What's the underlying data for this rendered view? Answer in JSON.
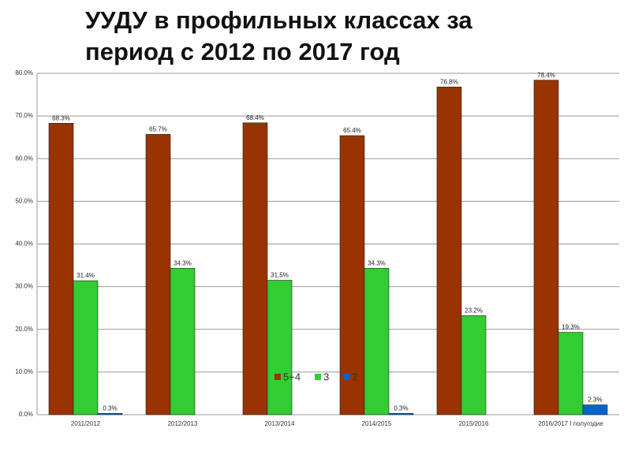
{
  "chart_data": {
    "type": "bar",
    "title": "УУДУ в профильных классах за период с 2012 по 2017 год",
    "categories": [
      "2011/2012",
      "2012/2013",
      "2013/2014",
      "2014/2015",
      "2015/2016",
      "2016/2017 I полугодие"
    ],
    "series": [
      {
        "name": "5+4",
        "color": "#993300",
        "values": [
          68.3,
          65.7,
          68.4,
          65.4,
          76.8,
          78.4
        ],
        "value_labels": [
          "68.3%",
          "65.7%",
          "68.4%",
          "65.4%",
          "76.8%",
          "78.4%"
        ]
      },
      {
        "name": "3",
        "color": "#33cc33",
        "values": [
          31.4,
          34.3,
          31.5,
          34.3,
          23.2,
          19.3
        ],
        "value_labels": [
          "31.4%",
          "34.3%",
          "31.5%",
          "34.3%",
          "23.2%",
          "19.3%"
        ]
      },
      {
        "name": "2",
        "color": "#0066cc",
        "values": [
          0.3,
          0,
          0,
          0.3,
          0,
          2.3
        ],
        "value_labels": [
          "0.3%",
          null,
          null,
          "0.3%",
          null,
          "2.3%"
        ]
      }
    ],
    "ylim": [
      0,
      80
    ],
    "yticks": [
      {
        "value": 0,
        "label": "0.0%"
      },
      {
        "value": 10,
        "label": "10.0%"
      },
      {
        "value": 20,
        "label": "20.0%"
      },
      {
        "value": 30,
        "label": "30.0%"
      },
      {
        "value": 40,
        "label": "40.0%"
      },
      {
        "value": 50,
        "label": "50.0%"
      },
      {
        "value": 60,
        "label": "60.0%"
      },
      {
        "value": 70,
        "label": "70.0%"
      },
      {
        "value": 80,
        "label": "80.0%"
      }
    ],
    "grid": true
  }
}
